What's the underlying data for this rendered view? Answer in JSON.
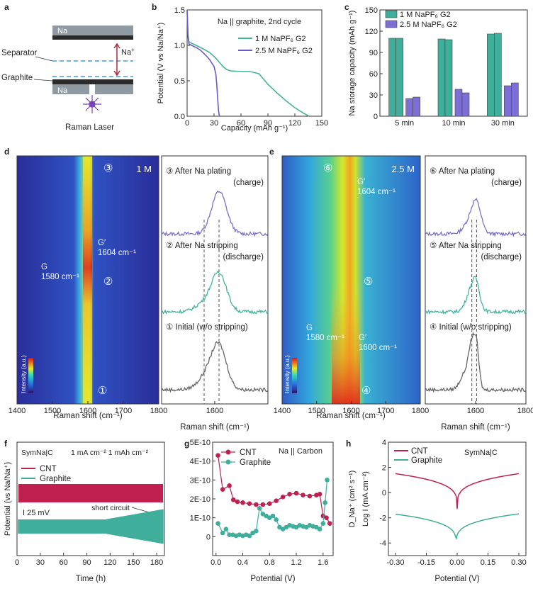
{
  "panel_labels": {
    "a": "a",
    "b": "b",
    "c": "c",
    "d": "d",
    "e": "e",
    "f": "f",
    "g": "g",
    "h": "h"
  },
  "schematic": {
    "na_top": "Na",
    "na_plus": "Na",
    "na_plus_sup": "+",
    "separator": "Separator",
    "graphite": "Graphite",
    "na_bottom": "Na",
    "laser": "Raman Laser",
    "colors": {
      "na": "#8f9aa3",
      "graphite": "#2a2a2a",
      "separator": "#3d9de0",
      "arrow": "#b0283a",
      "laser": "#7b3fb5"
    }
  },
  "chart_data": [
    {
      "id": "b",
      "type": "line",
      "title": "Na || graphite, 2nd cycle",
      "xlabel": "Capacity (mAh g⁻¹)",
      "ylabel": "Potential (V vs Na/Na⁺)",
      "xlim": [
        0,
        150
      ],
      "ylim": [
        0,
        1.5
      ],
      "xticks": [
        "0",
        "30",
        "60",
        "90",
        "120",
        "150"
      ],
      "yticks": [
        "0.0",
        "0.5",
        "1.0",
        "1.5"
      ],
      "series": [
        {
          "name": "1 M NaPF₆ G2",
          "color": "#45b39d",
          "x": [
            0,
            0.5,
            1,
            2,
            5,
            10,
            18,
            25,
            32,
            36,
            40,
            44,
            48,
            55,
            70,
            80,
            90,
            100,
            110,
            120,
            130,
            136
          ],
          "y": [
            1.5,
            1.35,
            1.15,
            1.05,
            1.03,
            1.0,
            0.95,
            0.9,
            0.82,
            0.76,
            0.7,
            0.66,
            0.64,
            0.635,
            0.63,
            0.6,
            0.45,
            0.33,
            0.22,
            0.12,
            0.04,
            0
          ]
        },
        {
          "name": "2.5 M NaPF₆ G2",
          "color": "#6a5acd",
          "x": [
            0,
            0.5,
            1,
            2,
            5,
            10,
            15,
            20,
            25,
            30,
            32,
            33,
            34,
            35,
            36
          ],
          "y": [
            1.5,
            1.3,
            1.12,
            1.02,
            1.0,
            0.97,
            0.93,
            0.87,
            0.8,
            0.7,
            0.6,
            0.45,
            0.25,
            0.08,
            0
          ]
        }
      ]
    },
    {
      "id": "c",
      "type": "bar",
      "xlabel": "",
      "ylabel": "Na storage capacity (mAh g⁻¹)",
      "ylim": [
        0,
        150
      ],
      "yticks": [
        "0",
        "30",
        "60",
        "90",
        "120",
        "150"
      ],
      "categories": [
        "5 min",
        "10 min",
        "30 min"
      ],
      "series": [
        {
          "name": "1 M NaPF₆ G2",
          "color": "#3fae9a",
          "values": [
            [
              110,
              110
            ],
            [
              109,
              108
            ],
            [
              116,
              117
            ]
          ]
        },
        {
          "name": "2.5 M NaPF₆ G2",
          "color": "#7b6fd6",
          "values": [
            [
              25,
              27
            ],
            [
              38,
              33
            ],
            [
              43,
              47
            ]
          ]
        }
      ]
    },
    {
      "id": "d",
      "type": "heatmap",
      "colorbar": "Intensity (a.u.)",
      "label": "1 M",
      "xlabel": "Raman shift (cm⁻¹)",
      "xlim": [
        1400,
        1800
      ],
      "xticks": [
        "1400",
        "1500",
        "1600",
        "1700",
        "1800"
      ],
      "annotations": {
        "g": "G",
        "g_pos": "1580 cm⁻¹",
        "gp": "G′",
        "gp_pos": "1604 cm⁻¹",
        "m1": "①",
        "m2": "②",
        "m3": "③"
      }
    },
    {
      "id": "d2",
      "type": "line",
      "xlabel": "Raman shift (cm⁻¹)",
      "xlim": [
        1550,
        1650
      ],
      "xticks": [
        "1600"
      ],
      "refs": [
        1590,
        1604
      ],
      "spectra": [
        {
          "label": "③ After Na plating",
          "sub": "(charge)",
          "color": "#7a6fc8",
          "peaks": [
            [
              1604,
              1.0,
              7
            ]
          ]
        },
        {
          "label": "② After Na stripping",
          "sub": "(discharge)",
          "color": "#45b39d",
          "peaks": [
            [
              1604,
              0.9,
              7
            ],
            [
              1590,
              0.2,
              8
            ]
          ]
        },
        {
          "label": "① Initial (w/o stripping)",
          "sub": "",
          "color": "#666666",
          "peaks": [
            [
              1604,
              1.0,
              7
            ],
            [
              1592,
              0.3,
              8
            ]
          ]
        }
      ]
    },
    {
      "id": "e",
      "type": "heatmap",
      "colorbar": "Intensity (a.u.)",
      "label": "2.5 M",
      "xlabel": "Raman shift (cm⁻¹)",
      "xlim": [
        1400,
        1800
      ],
      "xticks": [
        "1400",
        "1500",
        "1600",
        "1700",
        "1800"
      ],
      "annotations": {
        "gp_top": "G′",
        "gp_top_pos": "1604 cm⁻¹",
        "g": "G",
        "g_pos": "1580 cm⁻¹",
        "gp": "G′",
        "gp_pos": "1600 cm⁻¹",
        "m4": "④",
        "m5": "⑤",
        "m6": "⑥"
      }
    },
    {
      "id": "e2",
      "type": "line",
      "xlabel": "Raman shift (cm⁻¹)",
      "xlim": [
        1400,
        1800
      ],
      "xticks": [
        "1600",
        "1800"
      ],
      "refs": [
        1585,
        1604
      ],
      "spectra": [
        {
          "label": "⑥ After Na plating",
          "sub": "(charge)",
          "color": "#7a6fc8",
          "peaks": [
            [
              1604,
              0.6,
              18
            ],
            [
              1580,
              0.3,
              25
            ]
          ]
        },
        {
          "label": "⑤ After Na stripping",
          "sub": "(discharge)",
          "color": "#45b39d",
          "peaks": [
            [
              1588,
              0.6,
              22
            ],
            [
              1604,
              0.3,
              12
            ]
          ]
        },
        {
          "label": "④ Initial (w/o stripping)",
          "sub": "",
          "color": "#666666",
          "peaks": [
            [
              1585,
              0.9,
              12
            ],
            [
              1604,
              0.9,
              10
            ],
            [
              1560,
              0.4,
              20
            ]
          ]
        }
      ]
    },
    {
      "id": "f",
      "type": "line",
      "xlabel": "Time (h)",
      "ylabel": "Potential (vs Na/Na⁺)",
      "xlim": [
        0,
        190
      ],
      "xticks": [
        "0",
        "30",
        "60",
        "90",
        "120",
        "150",
        "180"
      ],
      "annotation": "SymNa|C",
      "condition": "1 mA cm⁻² 1 mAh cm⁻²",
      "scale": "I 25 mV",
      "event": "short circuit",
      "series": [
        {
          "name": "CNT",
          "color": "#c0204f"
        },
        {
          "name": "Graphite",
          "color": "#3fae9a"
        }
      ]
    },
    {
      "id": "g",
      "type": "scatter",
      "title": "Na || Carbon",
      "xlabel": "Potential (V)",
      "ylabel": "",
      "xlim": [
        -0.05,
        1.75
      ],
      "ylim": [
        -1e-10,
        5e-10
      ],
      "xticks": [
        "0.0",
        "0.4",
        "0.8",
        "1.2",
        "1.6"
      ],
      "yticks": [
        "0",
        "1E-10",
        "2E-10",
        "3E-10",
        "4E-10",
        "5E-10"
      ],
      "series": [
        {
          "name": "CNT",
          "color": "#c0204f",
          "x": [
            0.03,
            0.1,
            0.2,
            0.26,
            0.32,
            0.4,
            0.5,
            0.6,
            0.7,
            0.8,
            0.9,
            1.0,
            1.1,
            1.2,
            1.3,
            1.4,
            1.5,
            1.55,
            1.6,
            1.65,
            1.7
          ],
          "y": [
            4.3e-10,
            2.5e-10,
            2.7e-10,
            1.95e-10,
            1.85e-10,
            1.8e-10,
            1.75e-10,
            1.7e-10,
            1.7e-10,
            1.75e-10,
            1.9e-10,
            2.1e-10,
            2.25e-10,
            2.3e-10,
            2.2e-10,
            2.15e-10,
            2.2e-10,
            2.25e-10,
            1.1e-10,
            1e-10,
            7e-11
          ]
        },
        {
          "name": "Graphite",
          "color": "#3fae9a",
          "x": [
            0.03,
            0.1,
            0.15,
            0.2,
            0.25,
            0.3,
            0.35,
            0.4,
            0.45,
            0.5,
            0.55,
            0.6,
            0.65,
            0.7,
            0.75,
            0.8,
            0.85,
            0.9,
            0.95,
            1.0,
            1.05,
            1.1,
            1.15,
            1.2,
            1.25,
            1.3,
            1.35,
            1.4,
            1.45,
            1.5,
            1.55,
            1.6,
            1.63,
            1.66
          ],
          "y": [
            7e-11,
            2e-11,
            4e-11,
            1e-11,
            1e-11,
            5e-12,
            1e-11,
            5e-12,
            1e-11,
            5e-12,
            2e-11,
            3e-11,
            1.5e-10,
            1.2e-10,
            1.1e-10,
            1e-10,
            1.1e-10,
            9e-11,
            5e-11,
            4e-11,
            5e-11,
            6e-11,
            5.5e-11,
            5e-11,
            6e-11,
            5.5e-11,
            5e-11,
            6e-11,
            5.5e-11,
            5e-11,
            4e-11,
            7e-11,
            1.8e-10,
            3e-10
          ]
        }
      ]
    },
    {
      "id": "h",
      "type": "line",
      "annotation": "SymNa|C",
      "xlabel": "Potential (V)",
      "ylabel": "Log I (mA cm⁻²)",
      "ylabel2": "D_Na⁺ (cm² s⁻¹)",
      "xlim": [
        -0.3,
        0.3
      ],
      "ylim": [
        -5,
        4
      ],
      "xticks": [
        "-0.30",
        "-0.15",
        "0.00",
        "0.15",
        "0.30"
      ],
      "yticks": [
        "-4",
        "-2",
        "0",
        "2",
        "4"
      ],
      "series": [
        {
          "name": "CNT",
          "color": "#c0204f",
          "a": 1.5,
          "b": -1.3,
          "x0": 0.0
        },
        {
          "name": "Graphite",
          "color": "#3fae9a",
          "a": -1.7,
          "b": -4.3,
          "x0": -0.005
        }
      ]
    }
  ]
}
